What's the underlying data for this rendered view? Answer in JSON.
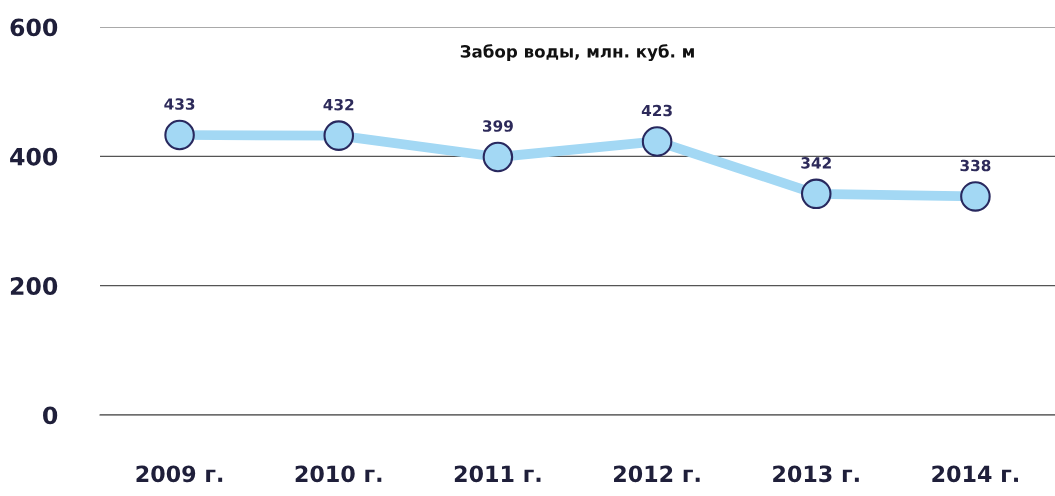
{
  "chart_data": {
    "type": "line",
    "title": "Забор воды, млн. куб. м",
    "categories": [
      "2009 г.",
      "2010 г.",
      "2011 г.",
      "2012 г.",
      "2013 г.",
      "2014 г."
    ],
    "series": [
      {
        "color": "#a3d8f4",
        "values": [
          433,
          432,
          399,
          423,
          342,
          338
        ]
      }
    ],
    "ylim": [
      0,
      600
    ],
    "yticks": [
      0,
      200,
      400,
      600
    ],
    "grid": "y",
    "marker": "circle",
    "line_style": "solid",
    "data_labels": true
  }
}
